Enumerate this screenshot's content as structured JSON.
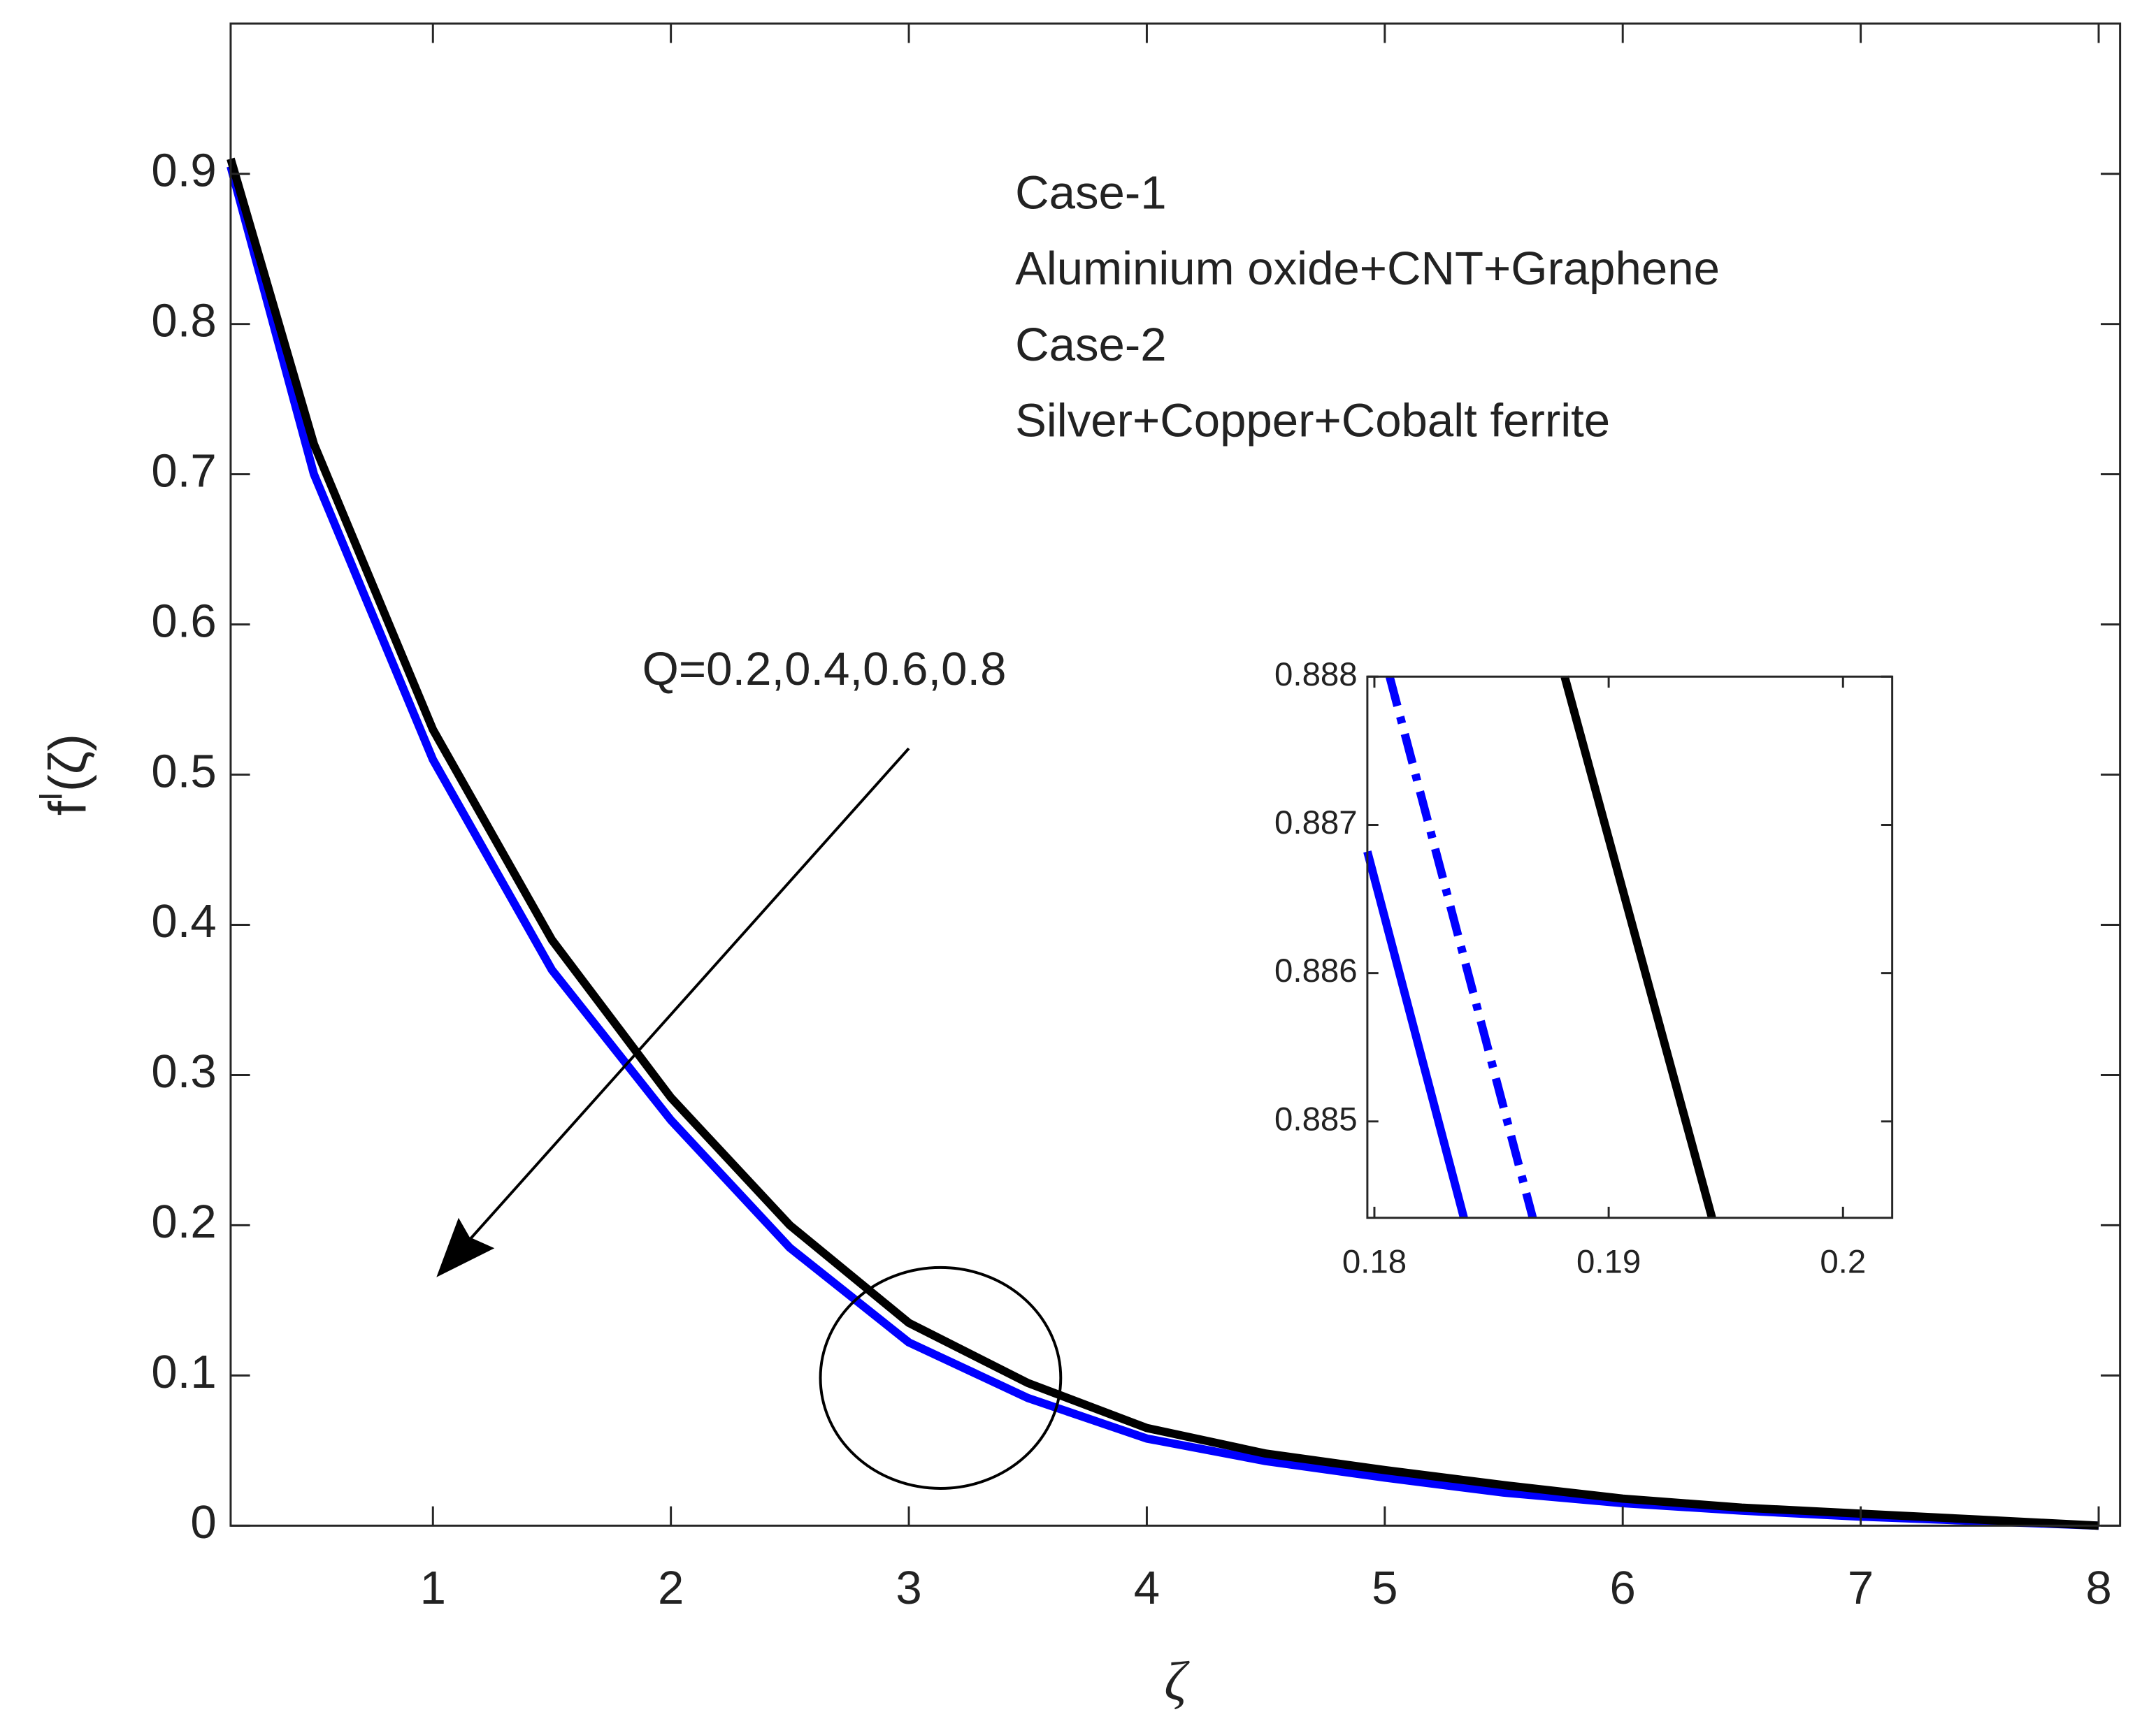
{
  "chart_data": [
    {
      "type": "line",
      "xlabel": "ζ",
      "ylabel": [
        "f",
        "I",
        "(ζ)"
      ],
      "annotations": [
        "Case-1",
        "Aluminium oxide+CNT+Graphene",
        "Case-2",
        "Silver+Copper+Cobalt ferrite"
      ],
      "arrow_label": "Q=0.2,0.4,0.6,0.8",
      "x": [
        0.15,
        0.5,
        1,
        1.5,
        2,
        2.5,
        3,
        3.5,
        4,
        4.5,
        5,
        5.5,
        6,
        6.5,
        7,
        7.5,
        8
      ],
      "series": [
        {
          "color": "#0000ff",
          "linestyle": "solid",
          "values": [
            0.905,
            0.7,
            0.51,
            0.37,
            0.27,
            0.185,
            0.122,
            0.085,
            0.058,
            0.043,
            0.032,
            0.022,
            0.015,
            0.01,
            0.006,
            0.003,
            0
          ]
        },
        {
          "color": "#000000",
          "linestyle": "solid",
          "values": [
            0.91,
            0.72,
            0.53,
            0.39,
            0.285,
            0.2,
            0.135,
            0.095,
            0.065,
            0.048,
            0.037,
            0.027,
            0.018,
            0.012,
            0.008,
            0.004,
            0
          ]
        }
      ],
      "xlim": [
        0.15,
        8.09
      ],
      "ylim": [
        0,
        1
      ],
      "xticks": [
        1,
        2,
        3,
        4,
        5,
        6,
        7,
        8
      ],
      "yticks": [
        0,
        0.1,
        0.2,
        0.3,
        0.4,
        0.5,
        0.6,
        0.7,
        0.8,
        0.9
      ]
    },
    {
      "type": "line",
      "series": [
        {
          "color": "#0000ff",
          "linestyle": "solid",
          "x": [
            0.1797,
            0.18382
          ],
          "values": [
            0.88682,
            0.88435
          ]
        },
        {
          "color": "#0000ff",
          "linestyle": "dashdot",
          "x": [
            0.18065,
            0.18676
          ],
          "values": [
            0.888,
            0.88435
          ]
        },
        {
          "color": "#000000",
          "linestyle": "solid",
          "x": [
            0.18812,
            0.19441
          ],
          "values": [
            0.888,
            0.88435
          ]
        }
      ],
      "xlim": [
        0.1797,
        0.2021
      ],
      "ylim": [
        0.88435,
        0.888
      ],
      "xticks": [
        0.18,
        0.19,
        0.2
      ],
      "yticks": [
        0.885,
        0.886,
        0.887,
        0.888
      ]
    }
  ]
}
